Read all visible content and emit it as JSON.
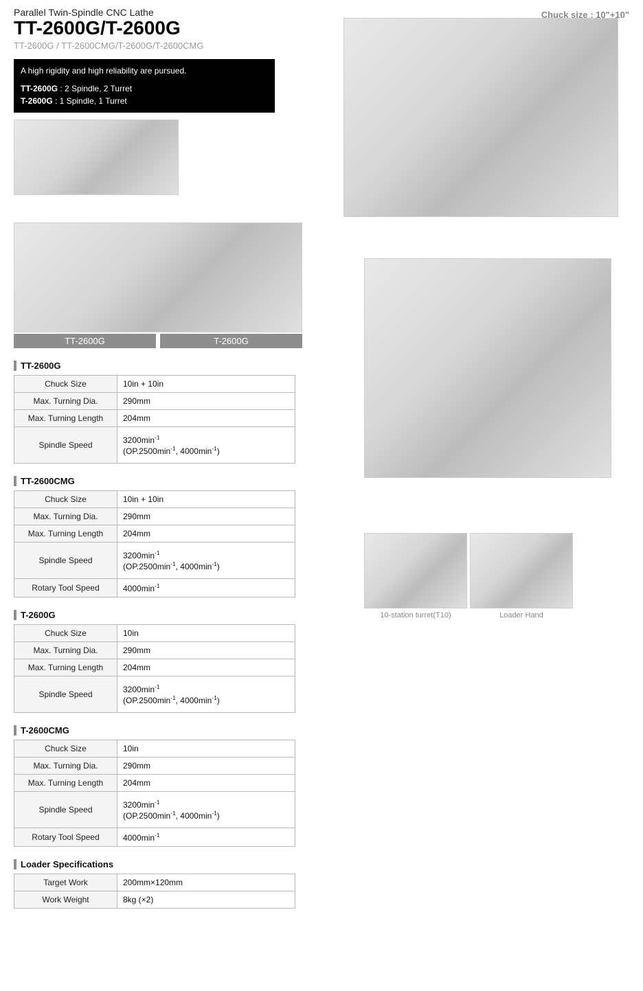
{
  "header": {
    "category": "Parallel Twin-Spindle CNC Lathe",
    "title": "TT-2600G/T-2600G",
    "sub": "TT-2600G / TT-2600CMG/T-2600G/T-2600CMG",
    "chuck_size": "Chuck size : 10\"+10\""
  },
  "blackbox": {
    "line1": "A high rigidity and high reliability are pursued.",
    "tt_label": "TT-2600G",
    "tt_desc": " : 2 Spindle, 2 Turret",
    "t_label": "T-2600G",
    "t_desc": " : 1 Spindle, 1 Turret"
  },
  "machine_labels": {
    "left": "TT-2600G",
    "right": "T-2600G"
  },
  "spindle_speed_html": "3200min⁻¹<br>(OP.2500min⁻¹, 4000min⁻¹)",
  "rotary_speed": "4000min⁻¹",
  "tables": [
    {
      "title": "TT-2600G",
      "rows": [
        {
          "label": "Chuck Size",
          "value": "10in + 10in"
        },
        {
          "label": "Max. Turning Dia.",
          "value": "290mm"
        },
        {
          "label": "Max. Turning Length",
          "value": "204mm"
        },
        {
          "label": "Spindle Speed",
          "value_key": "spindle_speed_html",
          "tall": true
        }
      ]
    },
    {
      "title": "TT-2600CMG",
      "rows": [
        {
          "label": "Chuck Size",
          "value": "10in + 10in"
        },
        {
          "label": "Max. Turning Dia.",
          "value": "290mm"
        },
        {
          "label": "Max. Turning Length",
          "value": "204mm"
        },
        {
          "label": "Spindle Speed",
          "value_key": "spindle_speed_html",
          "tall": true
        },
        {
          "label": "Rotary Tool Speed",
          "value_key": "rotary_speed"
        }
      ]
    },
    {
      "title": "T-2600G",
      "rows": [
        {
          "label": "Chuck Size",
          "value": "10in"
        },
        {
          "label": "Max. Turning Dia.",
          "value": "290mm"
        },
        {
          "label": "Max. Turning Length",
          "value": "204mm"
        },
        {
          "label": "Spindle Speed",
          "value_key": "spindle_speed_html",
          "tall": true
        }
      ]
    },
    {
      "title": "T-2600CMG",
      "rows": [
        {
          "label": "Chuck Size",
          "value": "10in"
        },
        {
          "label": "Max. Turning Dia.",
          "value": "290mm"
        },
        {
          "label": "Max. Turning Length",
          "value": "204mm"
        },
        {
          "label": "Spindle Speed",
          "value_key": "spindle_speed_html",
          "tall": true
        },
        {
          "label": "Rotary Tool Speed",
          "value_key": "rotary_speed"
        }
      ]
    }
  ],
  "loader": {
    "title": "Loader Specifications",
    "rows": [
      {
        "label": "Target Work",
        "value": "200mm×120mm"
      },
      {
        "label": "Work Weight",
        "value": "8kg (×2)"
      }
    ]
  },
  "thumbs": {
    "left": "10-station turret(T10)",
    "right": "Loader Hand"
  },
  "style": {
    "bg": "#ffffff",
    "text": "#111111",
    "muted": "#9a9a9a",
    "border": "#b8b8b8",
    "th_bg": "#f4f4f4",
    "label_bar_bg": "#8e8e8e",
    "blackbox_bg": "#000000",
    "font_title_pt": 28,
    "font_body_pt": 12
  }
}
